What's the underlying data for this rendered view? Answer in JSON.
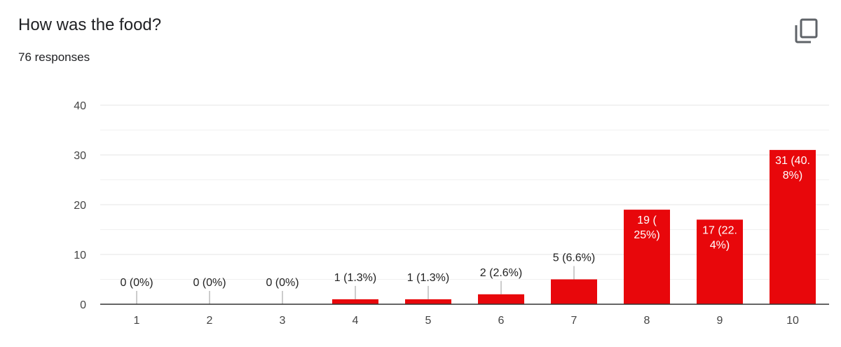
{
  "header": {
    "title": "How was the food?",
    "subtitle": "76 responses"
  },
  "icons": {
    "copy": "copy-icon"
  },
  "colors": {
    "bar": "#e8070b",
    "grid": "#e6e6e6",
    "axis": "#333333"
  },
  "chart_data": {
    "type": "bar",
    "title": "How was the food?",
    "categories": [
      "1",
      "2",
      "3",
      "4",
      "5",
      "6",
      "7",
      "8",
      "9",
      "10"
    ],
    "values": [
      0,
      0,
      0,
      1,
      1,
      2,
      5,
      19,
      17,
      31
    ],
    "labels": [
      [
        "0 (0%)"
      ],
      [
        "0 (0%)"
      ],
      [
        "0 (0%)"
      ],
      [
        "1 (1.3%)"
      ],
      [
        "1 (1.3%)"
      ],
      [
        "2 (2.6%)"
      ],
      [
        "5 (6.6%)"
      ],
      [
        "19 (",
        "25%)"
      ],
      [
        "17 (22.",
        "4%)"
      ],
      [
        "31 (40.",
        "8%)"
      ]
    ],
    "ylim": [
      0,
      40
    ],
    "yticks": [
      0,
      10,
      20,
      30,
      40
    ],
    "grid": true,
    "legend": "none"
  }
}
